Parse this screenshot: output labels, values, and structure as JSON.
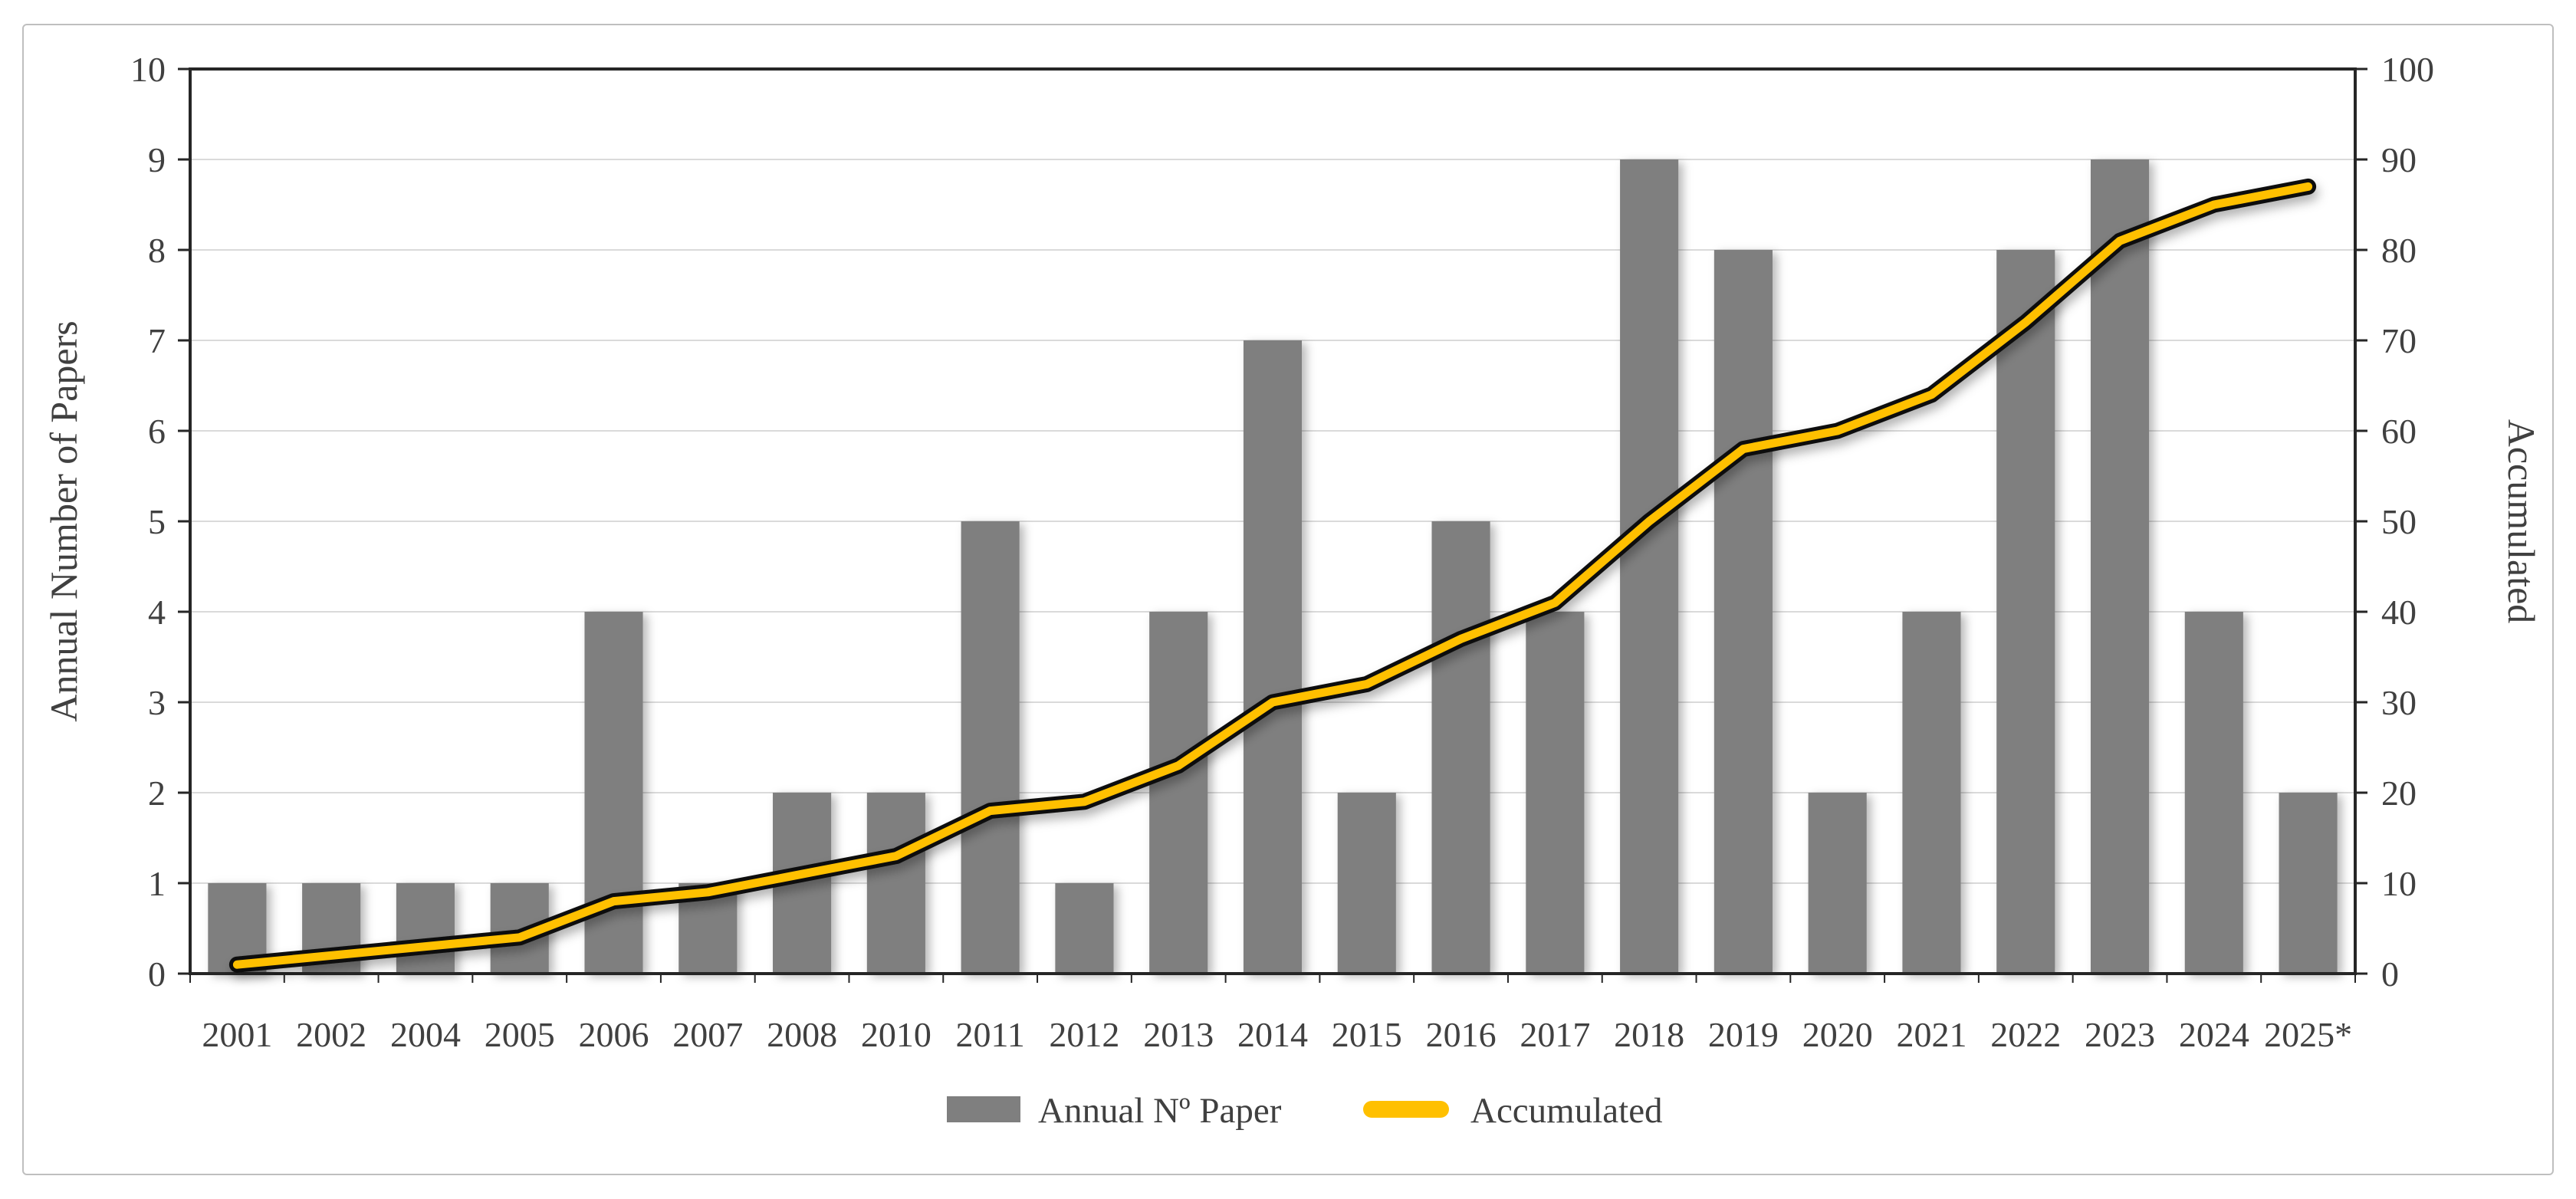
{
  "chart_data": {
    "type": "bar",
    "subtype": "bar+line-combo",
    "categories": [
      "2001",
      "2002",
      "2004",
      "2005",
      "2006",
      "2007",
      "2008",
      "2010",
      "2011",
      "2012",
      "2013",
      "2014",
      "2015",
      "2016",
      "2017",
      "2018",
      "2019",
      "2020",
      "2021",
      "2022",
      "2023",
      "2024",
      "2025*"
    ],
    "series": [
      {
        "name": "Annual Nº Paper",
        "type": "bar",
        "axis": "left",
        "color": "#7F7F7F",
        "values": [
          1,
          1,
          1,
          1,
          4,
          1,
          2,
          2,
          5,
          1,
          4,
          7,
          2,
          5,
          4,
          9,
          8,
          2,
          4,
          8,
          9,
          4,
          2
        ]
      },
      {
        "name": "Accumulated",
        "type": "line",
        "axis": "right",
        "color": "#FFC000",
        "outline_color": "#0D0D0D",
        "values": [
          1,
          2,
          3,
          4,
          8,
          9,
          11,
          13,
          18,
          19,
          23,
          30,
          32,
          37,
          41,
          50,
          58,
          60,
          64,
          72,
          81,
          85,
          87
        ]
      }
    ],
    "left_axis": {
      "label": "Annual Number of Papers",
      "min": 0,
      "max": 10,
      "ticks": [
        0,
        1,
        2,
        3,
        4,
        5,
        6,
        7,
        8,
        9,
        10
      ]
    },
    "right_axis": {
      "label": "Accumulated",
      "min": 0,
      "max": 100,
      "ticks": [
        0,
        10,
        20,
        30,
        40,
        50,
        60,
        70,
        80,
        90,
        100
      ]
    },
    "grid": true,
    "legend_position": "bottom",
    "colors": {
      "grid": "#DADADA",
      "axis": "#262626",
      "text": "#404040",
      "frame_border": "#BFBFBF",
      "background": "#FFFFFF"
    }
  }
}
